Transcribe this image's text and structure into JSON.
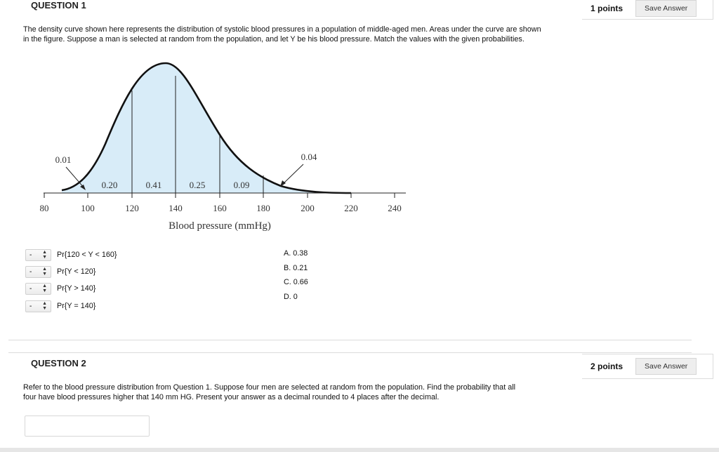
{
  "q1": {
    "title": "QUESTION 1",
    "points": "1 points",
    "save_label": "Save Answer",
    "text": "The density curve shown here represents the distribution of systolic blood pressures in a population of middle-aged men.  Areas under the curve are shown in the figure.  Suppose a man is selected at random from the population, and let Y be his blood pressure.  Match the values with the given probabilities.",
    "figure": {
      "xlabel": "Blood pressure (mmHg)",
      "ticks": [
        "80",
        "100",
        "120",
        "140",
        "160",
        "180",
        "200",
        "220",
        "240"
      ],
      "areas": [
        "0.20",
        "0.41",
        "0.25",
        "0.09"
      ],
      "left_tail": "0.01",
      "right_tail": "0.04"
    },
    "matches": [
      {
        "selected": "-",
        "label": "Pr{120 < Y < 160}"
      },
      {
        "selected": "-",
        "label": "Pr{Y < 120}"
      },
      {
        "selected": "-",
        "label": "Pr{Y > 140}"
      },
      {
        "selected": "-",
        "label": "Pr{Y = 140}"
      }
    ],
    "options": [
      "A. 0.38",
      "B. 0.21",
      "C. 0.66",
      "D. 0"
    ]
  },
  "q2": {
    "title": "QUESTION 2",
    "points": "2 points",
    "save_label": "Save Answer",
    "text": "Refer to the blood pressure distribution from Question 1.  Suppose four men are selected at random from the population.  Find the probability that all four have blood pressures higher that 140 mm HG.  Present your answer as a decimal rounded to 4 places after the decimal.",
    "answer_value": ""
  }
}
